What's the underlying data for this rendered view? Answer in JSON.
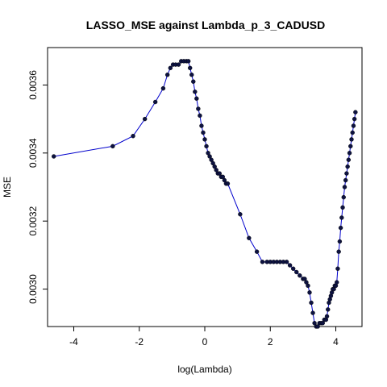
{
  "chart_data": {
    "type": "line",
    "title": "LASSO_MSE against Lambda_p_3_CADUSD",
    "xlabel": "log(Lambda)",
    "ylabel": "MSE",
    "xlim": [
      -4.8,
      4.8
    ],
    "ylim": [
      0.00289,
      0.00371
    ],
    "xticks": [
      -4,
      -2,
      0,
      2,
      4
    ],
    "xtick_labels": [
      "-4",
      "-2",
      "0",
      "2",
      "4"
    ],
    "yticks": [
      0.003,
      0.0032,
      0.0034,
      0.0036
    ],
    "ytick_labels": [
      "0.0030",
      "0.0032",
      "0.0034",
      "0.0036"
    ],
    "grid": false,
    "legend": "none",
    "colors": {
      "line": "#0000cc",
      "points": "#0d1240"
    },
    "series": [
      {
        "x": [
          -4.61,
          -2.81,
          -2.19,
          -1.83,
          -1.51,
          -1.27,
          -1.14,
          -1.05,
          -0.97,
          -0.89,
          -0.8,
          -0.72,
          -0.64,
          -0.56,
          -0.5,
          -0.45,
          -0.4,
          -0.35,
          -0.3,
          -0.25,
          -0.2,
          -0.15,
          -0.1,
          -0.05,
          0.0,
          0.05,
          0.1,
          0.15,
          0.2,
          0.25,
          0.3,
          0.35,
          0.4,
          0.45,
          0.5,
          0.55,
          0.6,
          0.65,
          0.7,
          1.08,
          1.35,
          1.59,
          1.76,
          1.9,
          2.0,
          2.1,
          2.2,
          2.3,
          2.4,
          2.5,
          2.6,
          2.7,
          2.8,
          2.9,
          3.0,
          3.05,
          3.1,
          3.15,
          3.2,
          3.25,
          3.3,
          3.35,
          3.4,
          3.45,
          3.5,
          3.55,
          3.6,
          3.65,
          3.7,
          3.73,
          3.76,
          3.79,
          3.82,
          3.85,
          3.88,
          3.91,
          3.94,
          3.97,
          4.0,
          4.03,
          4.06,
          4.09,
          4.12,
          4.15,
          4.18,
          4.21,
          4.24,
          4.27,
          4.3,
          4.33,
          4.36,
          4.39,
          4.42,
          4.45,
          4.48,
          4.51,
          4.54,
          4.57,
          4.6
        ],
        "y": [
          0.00339,
          0.00342,
          0.00345,
          0.0035,
          0.00355,
          0.00359,
          0.00363,
          0.00365,
          0.00366,
          0.00366,
          0.00366,
          0.00367,
          0.00367,
          0.00367,
          0.00367,
          0.00365,
          0.00363,
          0.00361,
          0.00358,
          0.00356,
          0.00353,
          0.00351,
          0.00348,
          0.00346,
          0.00344,
          0.00342,
          0.0034,
          0.00339,
          0.00338,
          0.00337,
          0.00336,
          0.00335,
          0.00334,
          0.00334,
          0.00333,
          0.00333,
          0.00332,
          0.00331,
          0.00331,
          0.00322,
          0.00315,
          0.00311,
          0.00308,
          0.00308,
          0.00308,
          0.00308,
          0.00308,
          0.00308,
          0.00308,
          0.00308,
          0.00307,
          0.00306,
          0.00305,
          0.00304,
          0.00303,
          0.00303,
          0.00302,
          0.00301,
          0.00299,
          0.00296,
          0.00293,
          0.0029,
          0.00289,
          0.00289,
          0.0029,
          0.0029,
          0.0029,
          0.00291,
          0.00291,
          0.00292,
          0.00294,
          0.00296,
          0.00297,
          0.00298,
          0.00299,
          0.003,
          0.003,
          0.00301,
          0.00301,
          0.00302,
          0.00306,
          0.00311,
          0.00314,
          0.00318,
          0.00321,
          0.00324,
          0.00327,
          0.0033,
          0.00332,
          0.00334,
          0.00336,
          0.00338,
          0.0034,
          0.00342,
          0.00344,
          0.00346,
          0.00348,
          0.0035,
          0.00352
        ]
      }
    ]
  }
}
